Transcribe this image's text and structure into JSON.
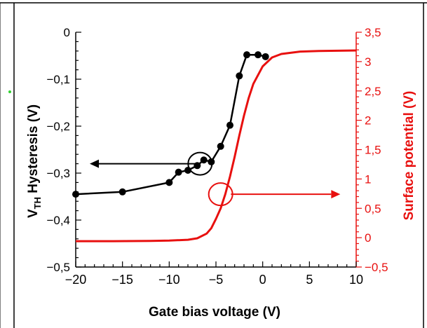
{
  "chart_data": {
    "type": "line",
    "xlabel": "Gate bias voltage (V)",
    "ylabel_left_main": "V",
    "ylabel_left_sub": "TH",
    "ylabel_left_rest": " Hysteresis (V)",
    "ylabel_right": "Surface potential (V)",
    "xlim": [
      -20,
      10
    ],
    "ylim_left": [
      -0.5,
      0
    ],
    "ylim_right": [
      -0.5,
      3.5
    ],
    "x_ticks": [
      -20,
      -15,
      -10,
      -5,
      0,
      5,
      10
    ],
    "x_tick_labels": [
      "−20",
      "−15",
      "−10",
      "−5",
      "0",
      "5",
      "10"
    ],
    "y_left_ticks": [
      0,
      -0.1,
      -0.2,
      -0.3,
      -0.4,
      -0.5
    ],
    "y_left_tick_labels": [
      "0",
      "−0,1",
      "−0,2",
      "−0,3",
      "−0,4",
      "−0,5"
    ],
    "y_right_ticks": [
      3.5,
      3,
      2.5,
      2,
      1.5,
      1,
      0.5,
      0,
      -0.5
    ],
    "y_right_tick_labels": [
      "3,5",
      "3",
      "2,5",
      "2",
      "1,5",
      "1",
      "0,5",
      "0",
      "−0,5"
    ],
    "series": [
      {
        "axis": "left",
        "color": "#000000",
        "markers": true,
        "x": [
          -20,
          -15,
          -10,
          -9,
          -8,
          -7,
          -6.3,
          -5.5,
          -4.5,
          -3.5,
          -2.5,
          -1.7,
          -0.5,
          0.3
        ],
        "y": [
          -0.345,
          -0.34,
          -0.32,
          -0.298,
          -0.294,
          -0.284,
          -0.272,
          -0.276,
          -0.243,
          -0.198,
          -0.093,
          -0.048,
          -0.048,
          -0.052
        ]
      },
      {
        "axis": "right",
        "color": "#e8100f",
        "markers": false,
        "x": [
          -20,
          -16,
          -12,
          -10,
          -8,
          -7,
          -6,
          -5.5,
          -5,
          -4.5,
          -4,
          -3.5,
          -3,
          -2.5,
          -2,
          -1.5,
          -1,
          0,
          1,
          2,
          4,
          6,
          10
        ],
        "y": [
          -0.06,
          -0.06,
          -0.055,
          -0.05,
          -0.035,
          -0.01,
          0.07,
          0.16,
          0.32,
          0.5,
          0.74,
          1.04,
          1.38,
          1.74,
          2.08,
          2.38,
          2.62,
          2.92,
          3.07,
          3.13,
          3.17,
          3.18,
          3.19
        ]
      }
    ],
    "annotations": [
      {
        "ellipse_center": [
          -6.7,
          -0.28
        ],
        "arrow_from": -6.7,
        "arrow_to": -18.5,
        "arrow_y": -0.28,
        "color": "#000000",
        "direction": "left"
      },
      {
        "ellipse_center": [
          -4.5,
          0.74
        ],
        "arrow_from": -3.4,
        "arrow_to": 8.3,
        "arrow_y": 0.74,
        "color": "#e8100f",
        "direction": "right"
      }
    ],
    "grid": false,
    "colors": {
      "left_axis": "#000000",
      "right_axis": "#e8100f",
      "frame": "#000000"
    }
  }
}
